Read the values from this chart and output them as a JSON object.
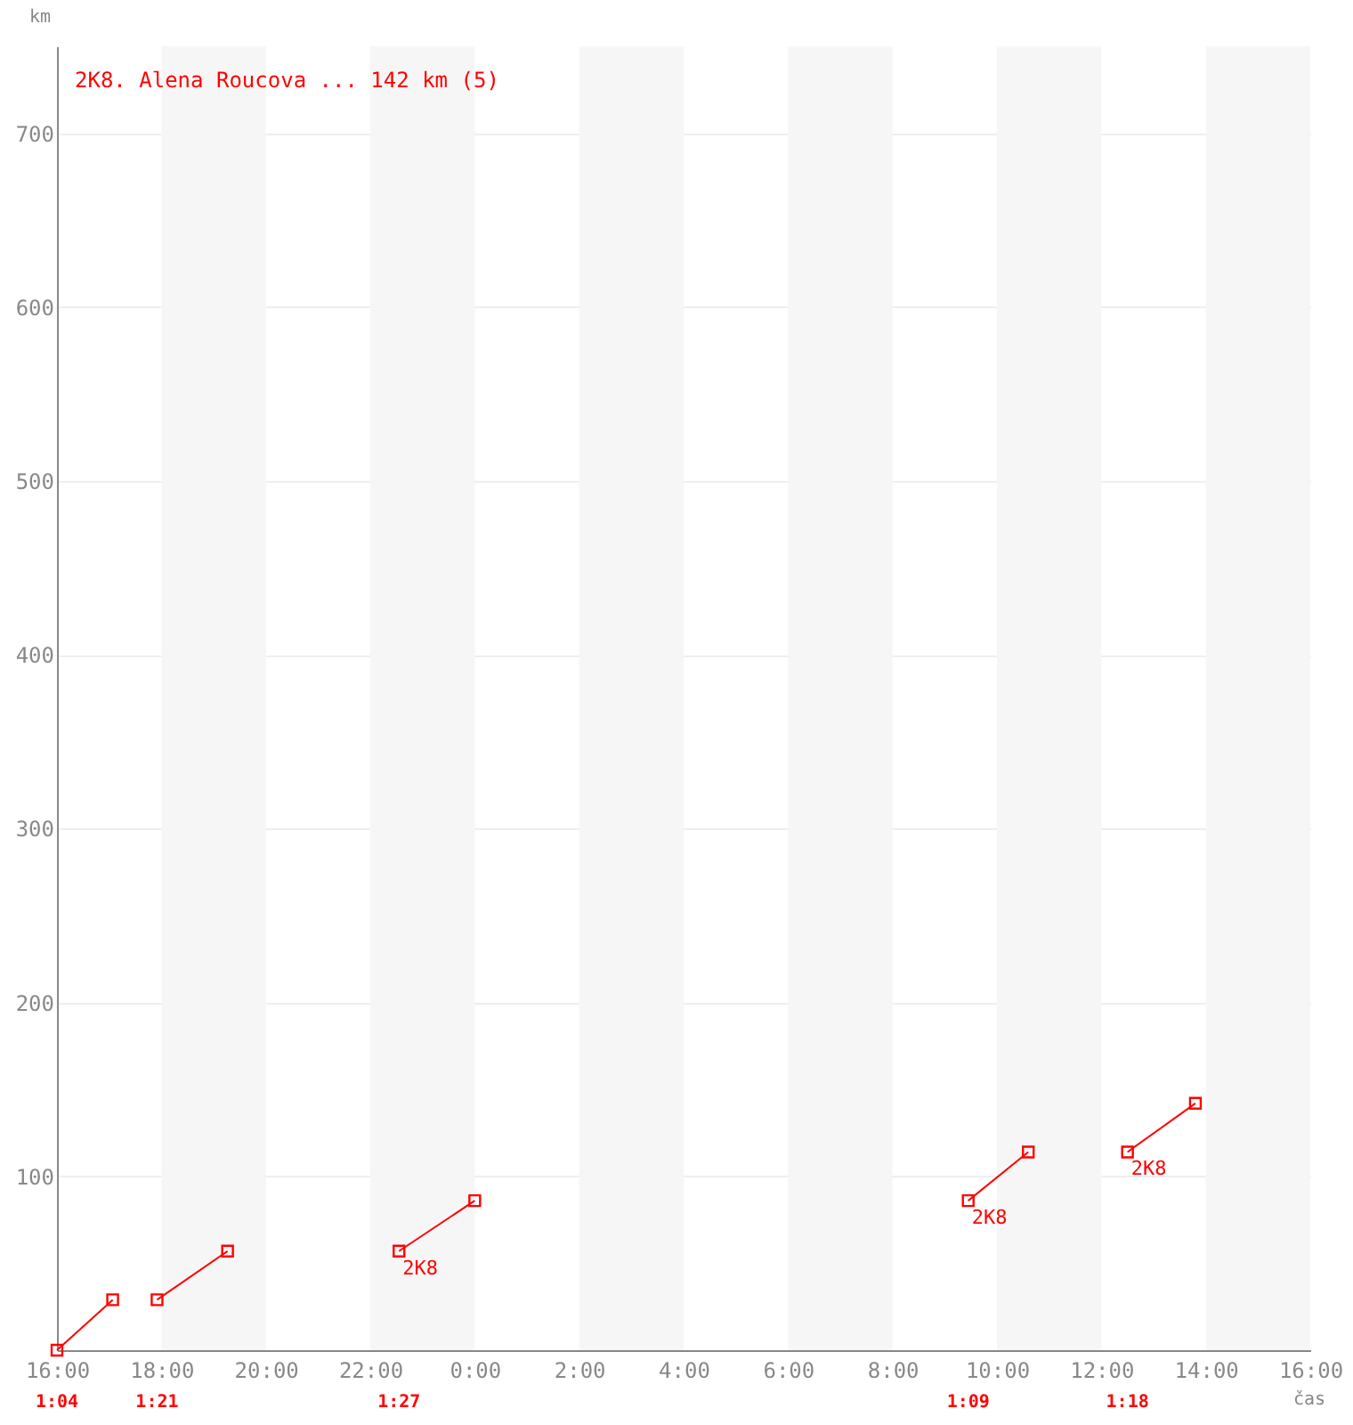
{
  "chart_data": {
    "type": "line",
    "title": "2K8. Alena Roucova ... 142 km (5)",
    "xlabel": "čas",
    "ylabel": "km",
    "xlim": [
      "--01-01T16:00",
      "--01-02T16:00"
    ],
    "ylim": [
      0,
      750
    ],
    "xticks": [
      {
        "value": "--01-01T16:00",
        "label": "16:00"
      },
      {
        "value": "--01-01T18:00",
        "label": "18:00"
      },
      {
        "value": "--01-01T20:00",
        "label": "20:00"
      },
      {
        "value": "--01-01T22:00",
        "label": "22:00"
      },
      {
        "value": "--01-02T00:00",
        "label": "0:00"
      },
      {
        "value": "--01-02T02:00",
        "label": "2:00"
      },
      {
        "value": "--01-02T04:00",
        "label": "4:00"
      },
      {
        "value": "--01-02T06:00",
        "label": "6:00"
      },
      {
        "value": "--01-02T08:00",
        "label": "8:00"
      },
      {
        "value": "--01-02T10:00",
        "label": "10:00"
      },
      {
        "value": "--01-02T12:00",
        "label": "12:00"
      },
      {
        "value": "--01-02T14:00",
        "label": "14:00"
      },
      {
        "value": "--01-02T16:00",
        "label": "16:00"
      }
    ],
    "yticks": [
      100,
      200,
      300,
      400,
      500,
      600,
      700
    ],
    "grid": "y",
    "marker": "square",
    "line_style": "solid",
    "series": [
      {
        "color": "#ff0000",
        "x": [
          "--01-01T16:00",
          "--01-01T17:04"
        ],
        "values": [
          0,
          29
        ]
      },
      {
        "color": "#ff0000",
        "x": [
          "--01-01T17:55",
          "--01-01T19:16"
        ],
        "values": [
          29,
          57
        ]
      },
      {
        "color": "#ff0000",
        "x": [
          "--01-01T22:33",
          "--01-02T00:00"
        ],
        "values": [
          57,
          86
        ]
      },
      {
        "color": "#ff0000",
        "x": [
          "--01-02T09:27",
          "--01-02T10:36"
        ],
        "values": [
          86,
          114
        ]
      },
      {
        "color": "#ff0000",
        "x": [
          "--01-02T12:30",
          "--01-02T13:48"
        ],
        "values": [
          114,
          142
        ]
      }
    ],
    "bands": [
      {
        "axis": "x",
        "from": "--01-01T18:00",
        "to": "--01-01T20:00",
        "color": "#f6f6f6"
      },
      {
        "axis": "x",
        "from": "--01-01T22:00",
        "to": "--01-02T00:00",
        "color": "#f6f6f6"
      },
      {
        "axis": "x",
        "from": "--01-02T02:00",
        "to": "--01-02T04:00",
        "color": "#f6f6f6"
      },
      {
        "axis": "x",
        "from": "--01-02T06:00",
        "to": "--01-02T08:00",
        "color": "#f6f6f6"
      },
      {
        "axis": "x",
        "from": "--01-02T10:00",
        "to": "--01-02T12:00",
        "color": "#f6f6f6"
      },
      {
        "axis": "x",
        "from": "--01-02T14:00",
        "to": "--01-02T16:00",
        "color": "#f6f6f6"
      }
    ],
    "annotations": [
      {
        "text": "2K8",
        "x": "--01-01T22:33",
        "y": 57
      },
      {
        "text": "2K8",
        "x": "--01-02T09:27",
        "y": 86
      },
      {
        "text": "2K8",
        "x": "--01-02T12:30",
        "y": 114
      },
      "1:04",
      "1:21",
      "1:27",
      "1:09",
      "1:18"
    ]
  }
}
